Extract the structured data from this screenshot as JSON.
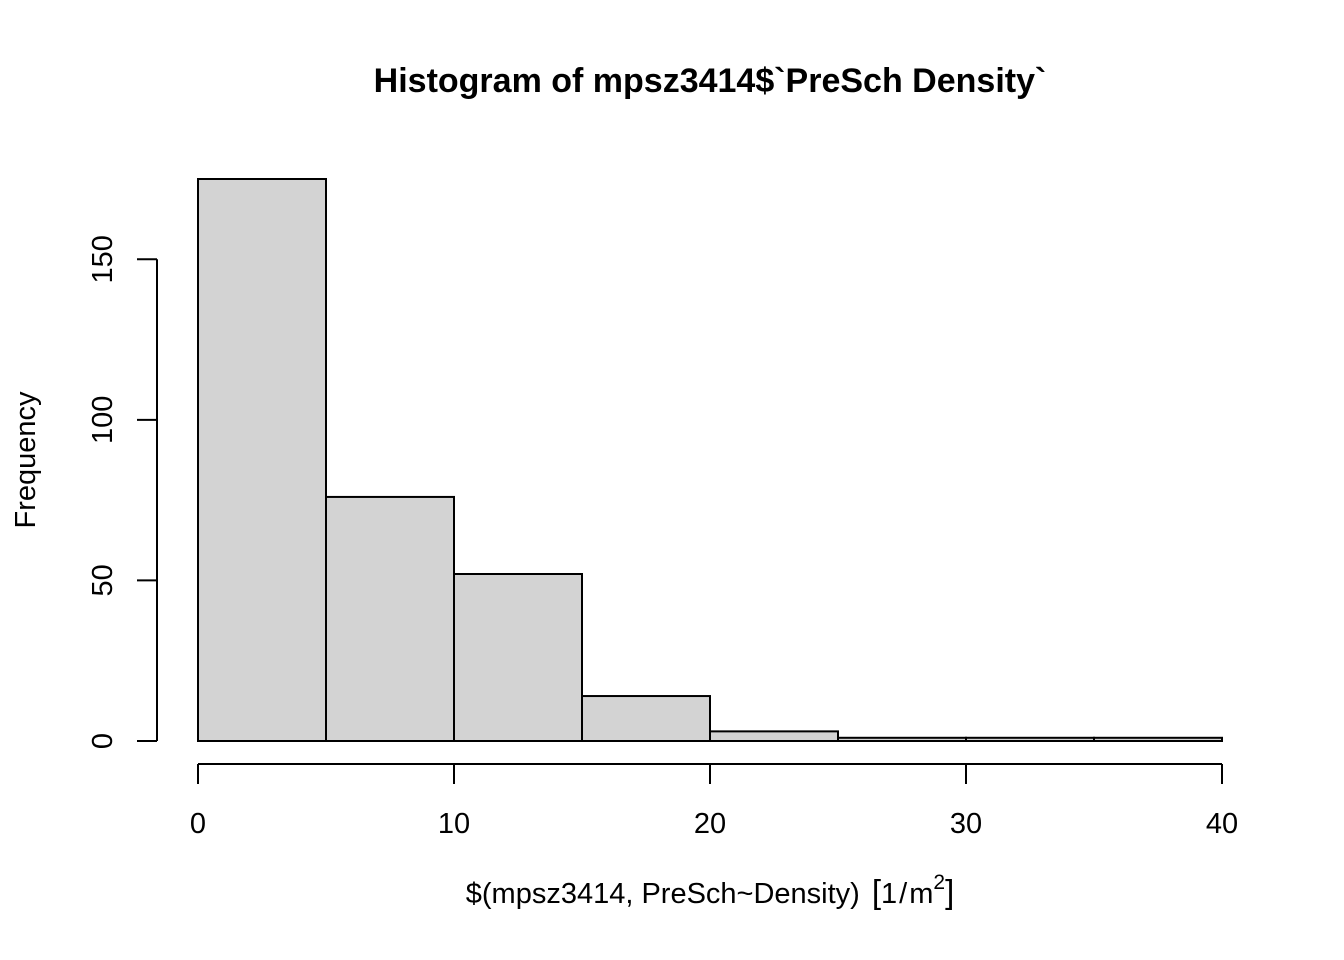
{
  "chart_data": {
    "type": "bar",
    "title": "Histogram of mpsz3414$`PreSch Density`",
    "xlabel": {
      "main": "$(mpsz3414, PreSch~Density)",
      "unit_open": "[",
      "unit_num": "1",
      "unit_slash": "/",
      "unit_base": "m",
      "unit_exp": "2",
      "unit_close": "]"
    },
    "ylabel": "Frequency",
    "bins": [
      {
        "from": 0,
        "to": 5,
        "count": 175
      },
      {
        "from": 5,
        "to": 10,
        "count": 76
      },
      {
        "from": 10,
        "to": 15,
        "count": 52
      },
      {
        "from": 15,
        "to": 20,
        "count": 14
      },
      {
        "from": 20,
        "to": 25,
        "count": 3
      },
      {
        "from": 25,
        "to": 30,
        "count": 1
      },
      {
        "from": 30,
        "to": 35,
        "count": 1
      },
      {
        "from": 35,
        "to": 40,
        "count": 1
      }
    ],
    "xlim": [
      0,
      40
    ],
    "ylim": [
      0,
      175
    ],
    "xticks": [
      "0",
      "10",
      "20",
      "30",
      "40"
    ],
    "yticks": [
      "0",
      "50",
      "100",
      "150"
    ],
    "grid": false,
    "bar_color": "#d3d3d3",
    "border_color": "#000000"
  }
}
